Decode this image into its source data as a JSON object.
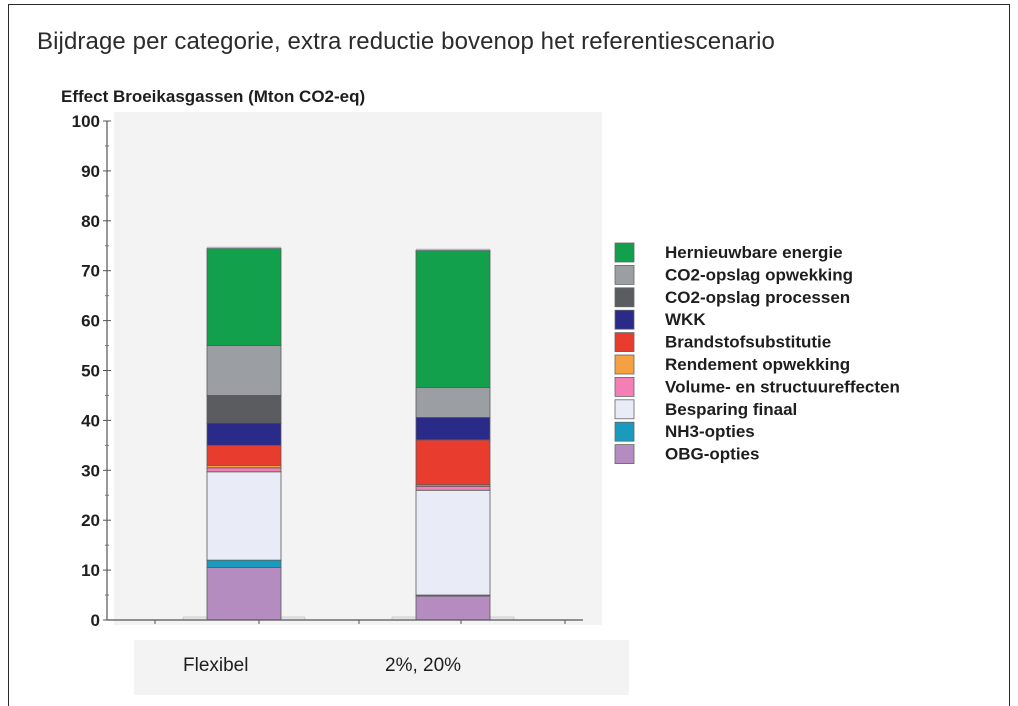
{
  "chart_data": {
    "type": "bar",
    "stacked": true,
    "title": "Bijdrage per categorie, extra reductie bovenop het referentiescenario",
    "ylabel": "Effect Broeikasgassen (Mton CO2-eq)",
    "xlabel": "",
    "ylim": [
      0,
      100
    ],
    "yticks": [
      0,
      10,
      20,
      30,
      40,
      50,
      60,
      70,
      80,
      90,
      100
    ],
    "categories": [
      "Flexibel",
      "2%, 20%"
    ],
    "legend_position": "right",
    "grid": false,
    "series": [
      {
        "name": "OBG-opties",
        "color": "#b48cc0",
        "values": [
          10.5,
          4.8
        ]
      },
      {
        "name": "NH3-opties",
        "color": "#1a9bbd",
        "values": [
          1.5,
          0.2
        ]
      },
      {
        "name": "Besparing finaal",
        "color": "#e9ecf6",
        "values": [
          17.7,
          21.0
        ]
      },
      {
        "name": "Volume- en structuureffecten",
        "color": "#f37fb4",
        "values": [
          0.8,
          0.8
        ]
      },
      {
        "name": "Rendement opwekking",
        "color": "#f5a142",
        "values": [
          0.5,
          0.3
        ]
      },
      {
        "name": "Brandstofsubstitutie",
        "color": "#e83c2e",
        "values": [
          4.0,
          9.0
        ]
      },
      {
        "name": "WKK",
        "color": "#2a2a88",
        "values": [
          4.5,
          4.5
        ]
      },
      {
        "name": "CO2-opslag processen",
        "color": "#5a5c60",
        "values": [
          5.5,
          0.0
        ]
      },
      {
        "name": "CO2-opslag opwekking",
        "color": "#9b9ea3",
        "values": [
          10.0,
          6.0
        ]
      },
      {
        "name": "Hernieuwbare energie",
        "color": "#13a04c",
        "values": [
          19.5,
          27.5
        ]
      }
    ]
  }
}
